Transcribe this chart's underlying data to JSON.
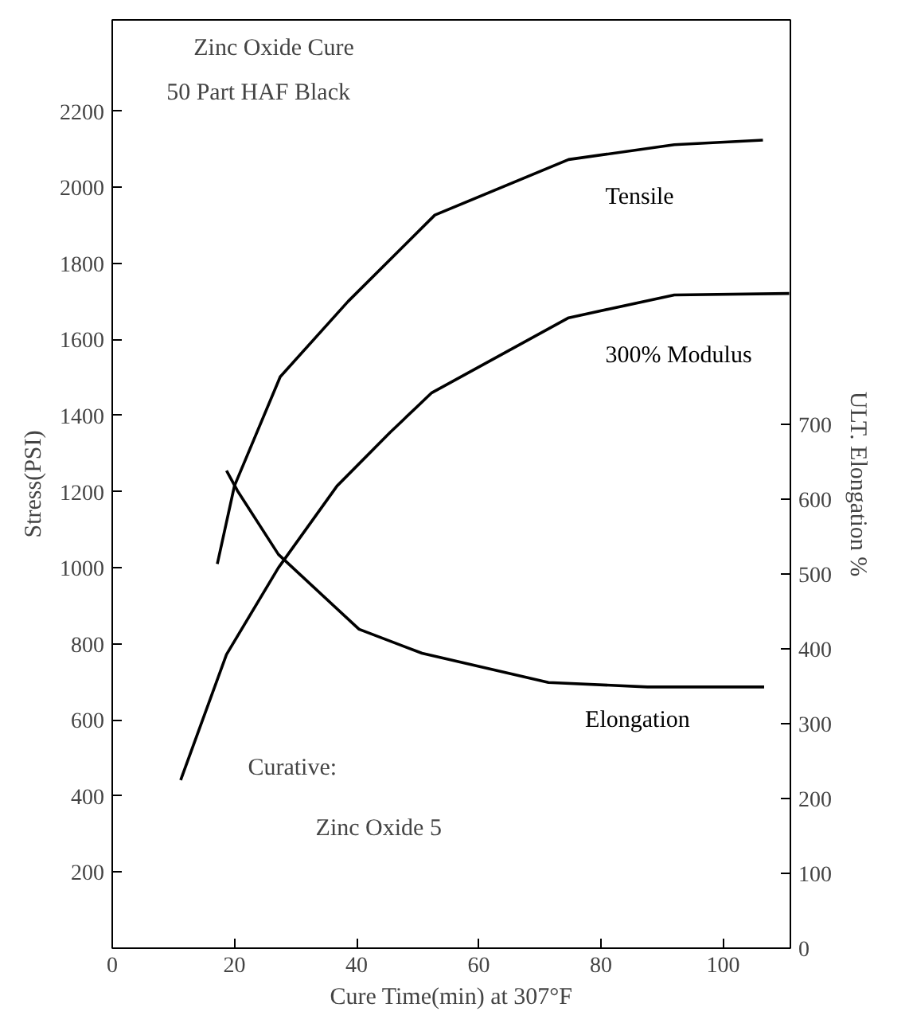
{
  "chart_data": {
    "type": "line",
    "title": "Zinc Oxide Cure",
    "subtitle": "50 Part HAF Black",
    "xlabel": "Cure Time(min) at 307°F",
    "ylabel": "Stress(PSI)",
    "y2label": "ULT. Elongation %",
    "annotations": [
      "Curative:",
      "Zinc Oxide 5"
    ],
    "xlim": [
      0,
      111
    ],
    "xticks": [
      0,
      20,
      40,
      60,
      80,
      100
    ],
    "ylim": [
      0,
      2440
    ],
    "yticks": [
      200,
      400,
      600,
      800,
      1000,
      1200,
      1400,
      1600,
      1800,
      2000,
      2200
    ],
    "y2lim": [
      0,
      1240
    ],
    "y2ticks": [
      0,
      100,
      200,
      300,
      400,
      500,
      600,
      700
    ],
    "grid": false,
    "marker": "none",
    "line_style": "solid",
    "series": [
      {
        "name": "Tensile",
        "color": "#000000",
        "x": [
          17.2,
          20,
          27.5,
          38.6,
          52.8,
          74.7,
          92,
          106.5
        ],
        "values": [
          1010,
          1215,
          1502,
          1700,
          1927,
          2073,
          2112,
          2124
        ]
      },
      {
        "name": "300% Modulus",
        "color": "#000000",
        "x": [
          11.2,
          18.7,
          27.2,
          36.8,
          45.5,
          52.3,
          74.7,
          92,
          110.8
        ],
        "values": [
          442,
          772,
          1000,
          1215,
          1356,
          1460,
          1657,
          1717,
          1721
        ]
      },
      {
        "name": "Elongation",
        "color": "#000000",
        "axis": "y2",
        "x": [
          18.7,
          20.5,
          27.2,
          40.4,
          50.7,
          71.4,
          87.6,
          106.7
        ],
        "values": [
          638,
          611,
          526,
          426,
          394,
          355,
          349,
          349
        ]
      }
    ]
  }
}
